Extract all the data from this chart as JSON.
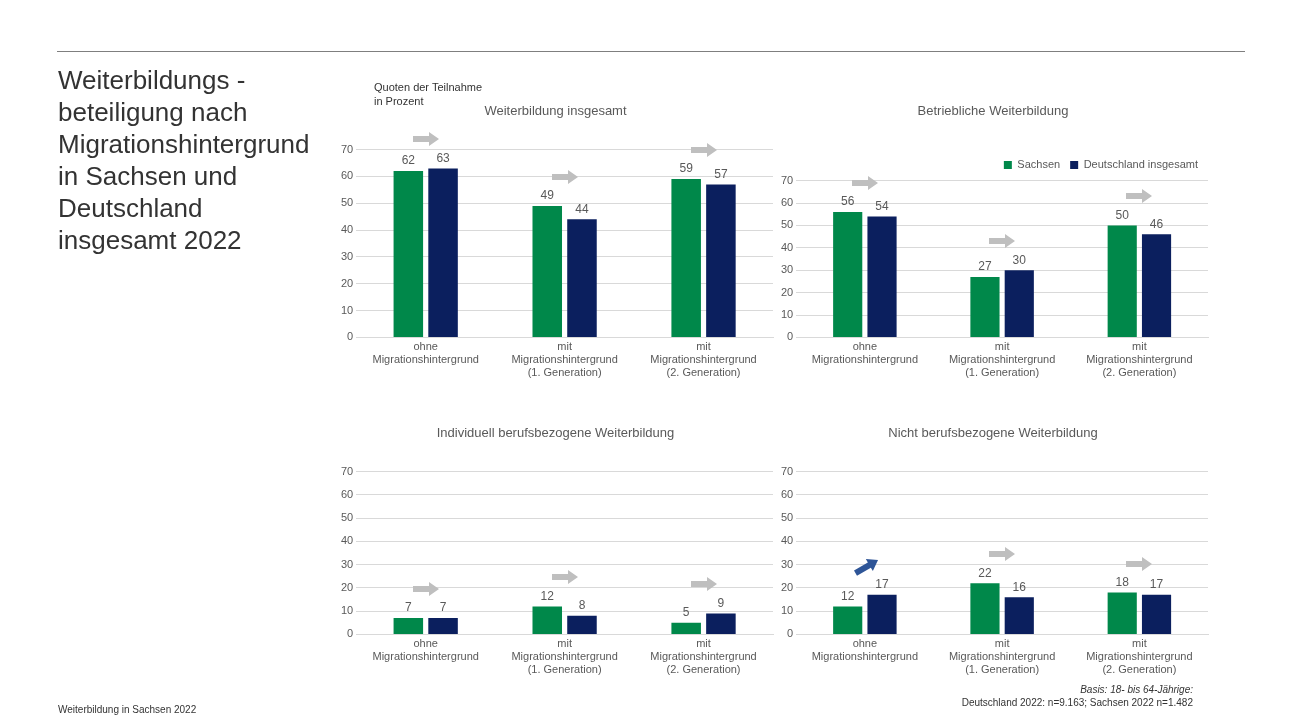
{
  "chart_data": [
    {
      "type": "other",
      "title": "Weiterbildungs -\nbeteiligung nach\nMigrationshintergrund\nin Sachsen und\nDeutschland\ninsgesamt 2022",
      "annotations": [
        "Weiterbildung in Sachsen 2022",
        "Basis: 18- bis 64-Jährige:",
        "Deutschland 2022: n=9.163; Sachsen 2022 n=1.482"
      ]
    },
    {
      "type": "bar",
      "title": "Weiterbildung insgesamt",
      "ylabel": "Quoten der Teilnahme\nin Prozent",
      "categories": [
        "ohne Migrationshintergrund",
        "mit Migrationshintergrund (1. Generation)",
        "mit Migrationshintergrund (2. Generation)"
      ],
      "series": [
        {
          "color": "#00884a",
          "values": [
            62,
            49,
            59
          ]
        },
        {
          "color": "#0b1f5e",
          "values": [
            63,
            44,
            57
          ]
        }
      ],
      "ylim": [
        0,
        70
      ],
      "yticks": [
        0,
        10,
        20,
        30,
        40,
        50,
        60,
        70
      ],
      "grid": "y",
      "data_labels": true,
      "legend": false
    },
    {
      "type": "bar",
      "title": "Betriebliche Weiterbildung",
      "categories": [
        "ohne Migrationshintergrund",
        "mit Migrationshintergrund (1. Generation)",
        "mit Migrationshintergrund (2. Generation)"
      ],
      "series": [
        {
          "name": "Sachsen",
          "color": "#00884a",
          "values": [
            56,
            27,
            50
          ]
        },
        {
          "name": "Deutschland insgesamt",
          "color": "#0b1f5e",
          "values": [
            54,
            30,
            46
          ]
        }
      ],
      "ylim": [
        0,
        70
      ],
      "yticks": [
        0,
        10,
        20,
        30,
        40,
        50,
        60,
        70
      ],
      "grid": "y",
      "data_labels": true,
      "legend": "top right"
    },
    {
      "type": "bar",
      "title": "Individuell berufsbezogene Weiterbildung",
      "categories": [
        "ohne Migrationshintergrund",
        "mit Migrationshintergrund (1. Generation)",
        "mit Migrationshintergrund (2. Generation)"
      ],
      "series": [
        {
          "color": "#00884a",
          "values": [
            7,
            12,
            5
          ]
        },
        {
          "color": "#0b1f5e",
          "values": [
            7,
            8,
            9
          ]
        }
      ],
      "ylim": [
        0,
        70
      ],
      "yticks": [
        0,
        10,
        20,
        30,
        40,
        50,
        60,
        70
      ],
      "grid": "y",
      "data_labels": true,
      "legend": false
    },
    {
      "type": "bar",
      "title": "Nicht berufsbezogene Weiterbildung",
      "categories": [
        "ohne Migrationshintergrund",
        "mit Migrationshintergrund (1. Generation)",
        "mit Migrationshintergrund (2. Generation)"
      ],
      "series": [
        {
          "color": "#00884a",
          "values": [
            12,
            22,
            18
          ]
        },
        {
          "color": "#0b1f5e",
          "values": [
            17,
            16,
            17
          ]
        }
      ],
      "ylim": [
        0,
        70
      ],
      "yticks": [
        0,
        10,
        20,
        30,
        40,
        50,
        60,
        70
      ],
      "grid": "y",
      "data_labels": true,
      "legend": false
    }
  ]
}
